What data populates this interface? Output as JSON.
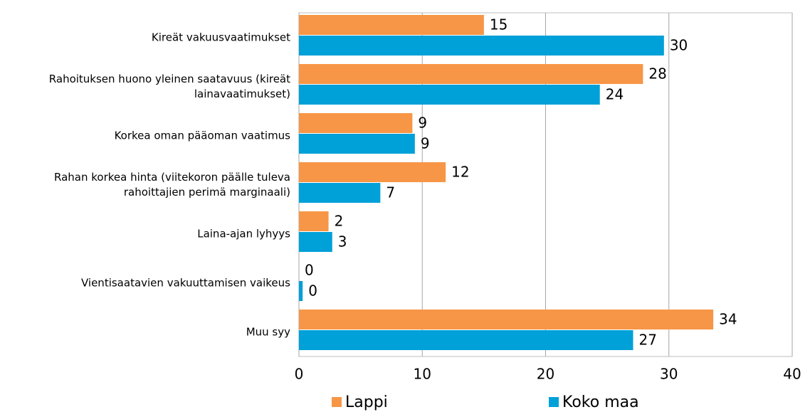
{
  "chart_data": {
    "type": "hbar",
    "categories": [
      "Kireät vakuusvaatimukset",
      "Rahoituksen huono yleinen saatavuus (kireät lainavaatimukset)",
      "Korkea oman pääoman vaatimus",
      "Rahan korkea hinta (viitekoron päälle tuleva rahoittajien perimä marginaali)",
      "Laina-ajan lyhyys",
      "Vientisaatavien vakuuttamisen vaikeus",
      "Muu syy"
    ],
    "series": [
      {
        "name": "Lappi",
        "color": "#f79646",
        "values": [
          15.0,
          27.9,
          9.2,
          11.9,
          2.4,
          0,
          33.6
        ],
        "value_labels": [
          "15",
          "28",
          "9",
          "12",
          "2",
          "0",
          "34"
        ]
      },
      {
        "name": "Koko maa",
        "color": "#00a0d8",
        "values": [
          29.6,
          24.4,
          9.4,
          6.6,
          2.7,
          0.3,
          27.1
        ],
        "value_labels": [
          "30",
          "24",
          "9",
          "7",
          "3",
          "0",
          "27"
        ]
      }
    ],
    "xlim": [
      0,
      40
    ],
    "xticks": [
      0,
      10,
      20,
      30,
      40
    ],
    "grid": true,
    "legend": "bottom"
  }
}
